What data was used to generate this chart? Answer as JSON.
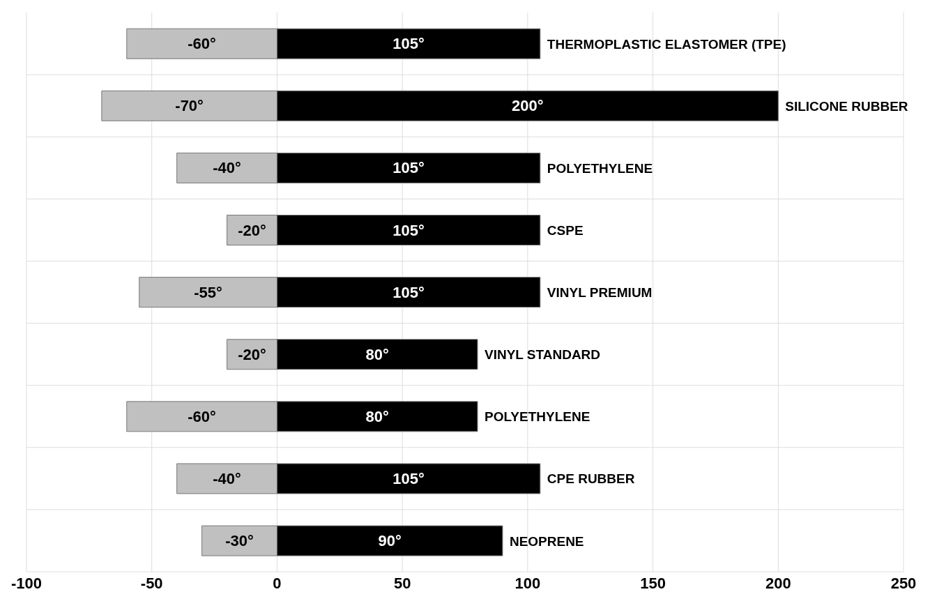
{
  "chart_data": {
    "type": "bar",
    "orientation": "horizontal",
    "stacked": true,
    "categories": [
      "THERMOPLASTIC ELASTOMER (TPE)",
      "SILICONE RUBBER",
      "POLYETHYLENE",
      "CSPE",
      "VINYL PREMIUM",
      "VINYL STANDARD",
      "POLYETHYLENE",
      "CPE RUBBER",
      "NEOPRENE"
    ],
    "series": [
      {
        "color": "#c0c0c0",
        "values": [
          -60,
          -70,
          -40,
          -20,
          -55,
          -20,
          -60,
          -40,
          -30
        ],
        "value_labels": [
          "-60°",
          "-70°",
          "-40°",
          "-20°",
          "-55°",
          "-20°",
          "-60°",
          "-40°",
          "-30°"
        ]
      },
      {
        "color": "#000000",
        "values": [
          105,
          200,
          105,
          105,
          105,
          80,
          80,
          105,
          90
        ],
        "value_labels": [
          "105°",
          "200°",
          "105°",
          "105°",
          "105°",
          "80°",
          "80°",
          "105°",
          "90°"
        ]
      }
    ],
    "xlim": [
      -100,
      250
    ],
    "xticks": [
      -100,
      -50,
      0,
      50,
      100,
      150,
      200,
      250
    ],
    "grid": true,
    "legend": false
  }
}
